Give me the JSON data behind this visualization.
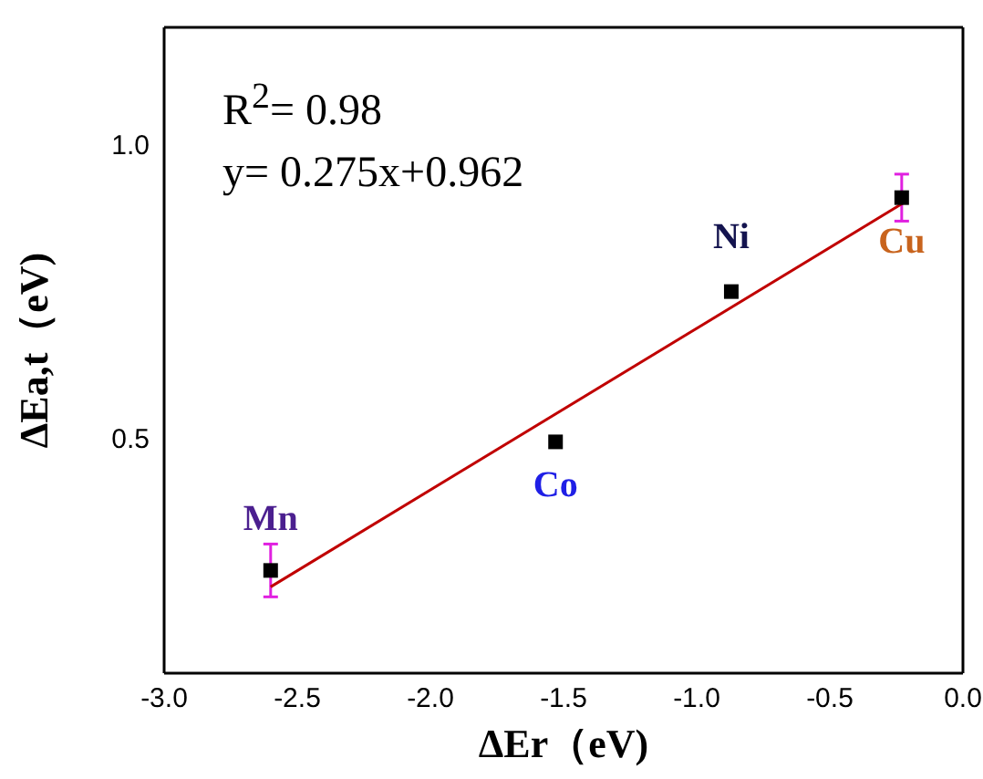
{
  "chart_data": {
    "type": "scatter",
    "xlabel": "ΔEr（eV)",
    "ylabel": "ΔEa,t（eV)",
    "xlim": [
      -3,
      0
    ],
    "xticks": [
      {
        "value": -3,
        "label": "-3.0"
      },
      {
        "value": -2.5,
        "label": "-2.5"
      },
      {
        "value": -2,
        "label": "-2.0"
      },
      {
        "value": -1.5,
        "label": "-1.5"
      },
      {
        "value": -1,
        "label": "-1.0"
      },
      {
        "value": -0.5,
        "label": "-0.5"
      },
      {
        "value": 0,
        "label": "0.0"
      }
    ],
    "ylim": [
      0.1,
      1.2
    ],
    "yticks": [
      0.5,
      {
        "value": 1,
        "label": "1.0"
      }
    ],
    "series": [
      {
        "marker": "square",
        "color": "#000000",
        "x": [
          -2.6,
          -1.53,
          -0.87,
          -0.23
        ],
        "values": [
          0.275,
          0.494,
          0.75,
          0.91
        ],
        "errors": [
          0.045,
          null,
          null,
          0.04
        ]
      },
      {
        "type": "line",
        "marker": "none",
        "color": "#c00000",
        "x": [
          -2.6,
          -0.22
        ],
        "values": [
          0.247,
          0.902
        ]
      }
    ],
    "annotations": [
      "R$^{2}$= 0.98",
      "y= 0.275x+0.962",
      {
        "text": "Mn",
        "x": -2.6,
        "y": 0.275
      },
      {
        "text": "Co",
        "x": -1.53,
        "y": 0.494
      },
      {
        "text": "Ni",
        "x": -0.87,
        "y": 0.75
      },
      {
        "text": "Cu",
        "x": -0.23,
        "y": 0.91
      }
    ]
  }
}
